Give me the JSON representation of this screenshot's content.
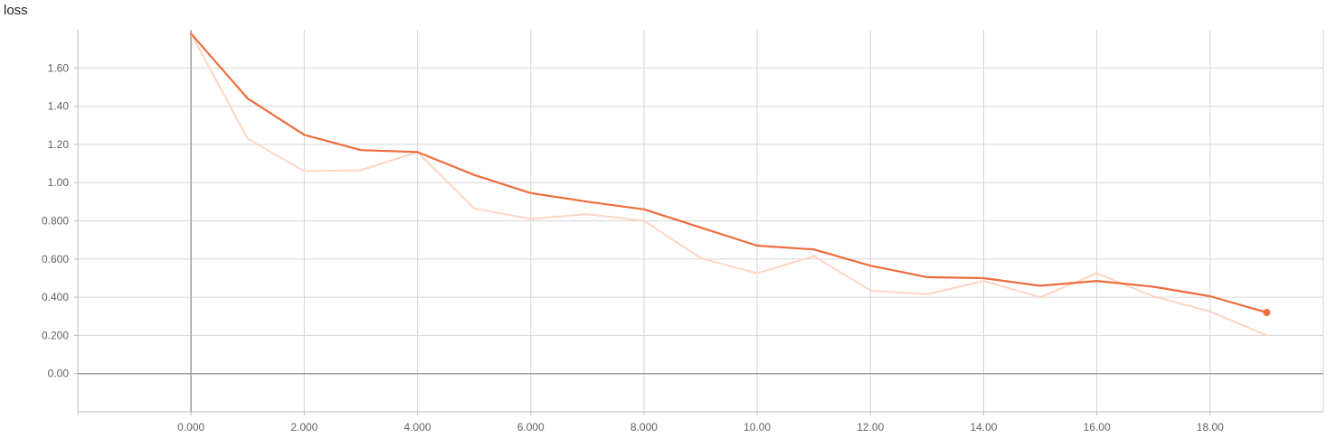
{
  "chart_data": {
    "type": "line",
    "title": "loss",
    "xlabel": "",
    "ylabel": "",
    "xlim": [
      -2.0,
      20.0
    ],
    "ylim": [
      -0.2,
      1.8
    ],
    "x_ticks": [
      0,
      2,
      4,
      6,
      8,
      10,
      12,
      14,
      16,
      18
    ],
    "x_tick_labels": [
      "0.000",
      "2.000",
      "4.000",
      "6.000",
      "8.000",
      "10.00",
      "12.00",
      "14.00",
      "16.00",
      "18.00"
    ],
    "y_ticks": [
      0,
      0.2,
      0.4,
      0.6,
      0.8,
      1.0,
      1.2,
      1.4,
      1.6
    ],
    "y_tick_labels": [
      "0.00",
      "0.200",
      "0.400",
      "0.600",
      "0.800",
      "1.00",
      "1.20",
      "1.40",
      "1.60"
    ],
    "grid": true,
    "series": [
      {
        "role": "smoothed",
        "color": "#ef6c3e",
        "x": [
          0,
          1,
          2,
          3,
          4,
          5,
          6,
          7,
          8,
          9,
          10,
          11,
          12,
          13,
          14,
          15,
          16,
          17,
          18,
          19
        ],
        "values": [
          1.78,
          1.44,
          1.25,
          1.17,
          1.16,
          1.04,
          0.945,
          0.9,
          0.86,
          0.765,
          0.67,
          0.65,
          0.565,
          0.505,
          0.5,
          0.46,
          0.485,
          0.455,
          0.405,
          0.32
        ]
      },
      {
        "role": "raw",
        "color": "#fdd5c4",
        "x": [
          0,
          1,
          2,
          3,
          4,
          5,
          6,
          7,
          8,
          9,
          10,
          11,
          12,
          13,
          14,
          15,
          16,
          17,
          18,
          19
        ],
        "values": [
          1.78,
          1.23,
          1.06,
          1.065,
          1.16,
          0.865,
          0.81,
          0.835,
          0.8,
          0.605,
          0.525,
          0.615,
          0.435,
          0.415,
          0.485,
          0.4,
          0.525,
          0.405,
          0.325,
          0.2
        ]
      }
    ]
  }
}
